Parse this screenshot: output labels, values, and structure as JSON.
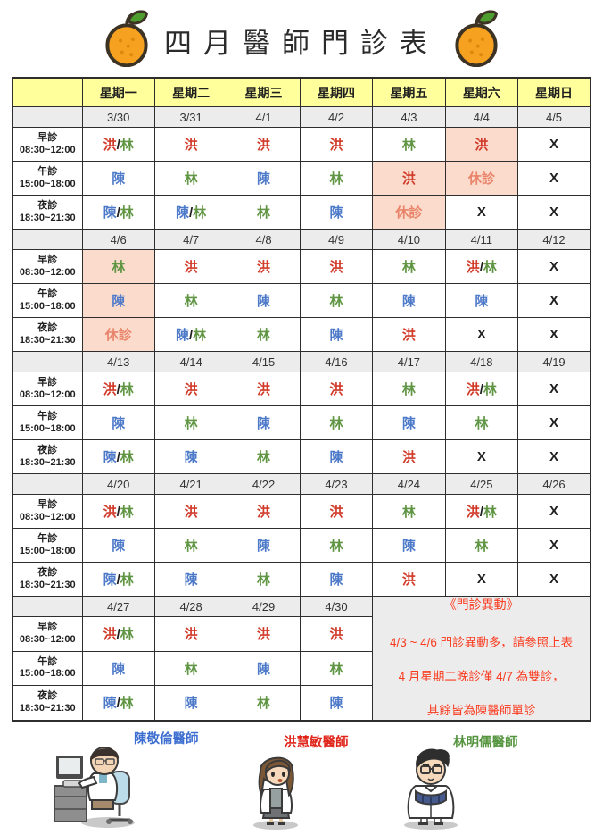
{
  "title": "四月醫師門診表",
  "weekday_headers": [
    "星期一",
    "星期二",
    "星期三",
    "星期四",
    "星期五",
    "星期六",
    "星期日"
  ],
  "time_slots": [
    {
      "name": "早診",
      "hours": "08:30~12:00"
    },
    {
      "name": "午診",
      "hours": "15:00~18:00"
    },
    {
      "name": "夜診",
      "hours": "18:30~21:30"
    }
  ],
  "legend_colors": {
    "洪": "#d13b2a",
    "林": "#5f9543",
    "陳": "#4d79c9",
    "休診": "#e9846a",
    "X": "#1f1f1f"
  },
  "colors": {
    "header_bg": "#ffff9c",
    "date_row_bg": "#ececec",
    "highlight_bg": "#fbdccc",
    "notice_text": "#fa3b1f"
  },
  "weeks": [
    {
      "dates": [
        "3/30",
        "3/31",
        "4/1",
        "4/2",
        "4/3",
        "4/4",
        "4/5"
      ],
      "rows": [
        [
          {
            "text": "洪/林",
            "highlight": false
          },
          {
            "text": "洪",
            "highlight": false
          },
          {
            "text": "洪",
            "highlight": false
          },
          {
            "text": "洪",
            "highlight": false
          },
          {
            "text": "林",
            "highlight": false
          },
          {
            "text": "洪",
            "highlight": true
          },
          {
            "text": "X",
            "highlight": false
          }
        ],
        [
          {
            "text": "陳",
            "highlight": false
          },
          {
            "text": "林",
            "highlight": false
          },
          {
            "text": "陳",
            "highlight": false
          },
          {
            "text": "林",
            "highlight": false
          },
          {
            "text": "洪",
            "highlight": true
          },
          {
            "text": "休診",
            "highlight": true
          },
          {
            "text": "X",
            "highlight": false
          }
        ],
        [
          {
            "text": "陳/林",
            "highlight": false
          },
          {
            "text": "陳/林",
            "highlight": false
          },
          {
            "text": "林",
            "highlight": false
          },
          {
            "text": "陳",
            "highlight": false
          },
          {
            "text": "休診",
            "highlight": true
          },
          {
            "text": "X",
            "highlight": false
          },
          {
            "text": "X",
            "highlight": false
          }
        ]
      ]
    },
    {
      "dates": [
        "4/6",
        "4/7",
        "4/8",
        "4/9",
        "4/10",
        "4/11",
        "4/12"
      ],
      "rows": [
        [
          {
            "text": "林",
            "highlight": true
          },
          {
            "text": "洪",
            "highlight": false
          },
          {
            "text": "洪",
            "highlight": false
          },
          {
            "text": "洪",
            "highlight": false
          },
          {
            "text": "林",
            "highlight": false
          },
          {
            "text": "洪/林",
            "highlight": false
          },
          {
            "text": "X",
            "highlight": false
          }
        ],
        [
          {
            "text": "陳",
            "highlight": true
          },
          {
            "text": "林",
            "highlight": false
          },
          {
            "text": "陳",
            "highlight": false
          },
          {
            "text": "林",
            "highlight": false
          },
          {
            "text": "陳",
            "highlight": false
          },
          {
            "text": "陳",
            "highlight": false
          },
          {
            "text": "X",
            "highlight": false
          }
        ],
        [
          {
            "text": "休診",
            "highlight": true
          },
          {
            "text": "陳/林",
            "highlight": false
          },
          {
            "text": "林",
            "highlight": false
          },
          {
            "text": "陳",
            "highlight": false
          },
          {
            "text": "洪",
            "highlight": false
          },
          {
            "text": "X",
            "highlight": false
          },
          {
            "text": "X",
            "highlight": false
          }
        ]
      ]
    },
    {
      "dates": [
        "4/13",
        "4/14",
        "4/15",
        "4/16",
        "4/17",
        "4/18",
        "4/19"
      ],
      "rows": [
        [
          {
            "text": "洪/林",
            "highlight": false
          },
          {
            "text": "洪",
            "highlight": false
          },
          {
            "text": "洪",
            "highlight": false
          },
          {
            "text": "洪",
            "highlight": false
          },
          {
            "text": "林",
            "highlight": false
          },
          {
            "text": "洪/林",
            "highlight": false
          },
          {
            "text": "X",
            "highlight": false
          }
        ],
        [
          {
            "text": "陳",
            "highlight": false
          },
          {
            "text": "林",
            "highlight": false
          },
          {
            "text": "陳",
            "highlight": false
          },
          {
            "text": "林",
            "highlight": false
          },
          {
            "text": "陳",
            "highlight": false
          },
          {
            "text": "林",
            "highlight": false
          },
          {
            "text": "X",
            "highlight": false
          }
        ],
        [
          {
            "text": "陳/林",
            "highlight": false
          },
          {
            "text": "陳",
            "highlight": false
          },
          {
            "text": "林",
            "highlight": false
          },
          {
            "text": "陳",
            "highlight": false
          },
          {
            "text": "洪",
            "highlight": false
          },
          {
            "text": "X",
            "highlight": false
          },
          {
            "text": "X",
            "highlight": false
          }
        ]
      ]
    },
    {
      "dates": [
        "4/20",
        "4/21",
        "4/22",
        "4/23",
        "4/24",
        "4/25",
        "4/26"
      ],
      "rows": [
        [
          {
            "text": "洪/林",
            "highlight": false
          },
          {
            "text": "洪",
            "highlight": false
          },
          {
            "text": "洪",
            "highlight": false
          },
          {
            "text": "洪",
            "highlight": false
          },
          {
            "text": "林",
            "highlight": false
          },
          {
            "text": "洪/林",
            "highlight": false
          },
          {
            "text": "X",
            "highlight": false
          }
        ],
        [
          {
            "text": "陳",
            "highlight": false
          },
          {
            "text": "林",
            "highlight": false
          },
          {
            "text": "陳",
            "highlight": false
          },
          {
            "text": "林",
            "highlight": false
          },
          {
            "text": "陳",
            "highlight": false
          },
          {
            "text": "林",
            "highlight": false
          },
          {
            "text": "X",
            "highlight": false
          }
        ],
        [
          {
            "text": "陳/林",
            "highlight": false
          },
          {
            "text": "陳",
            "highlight": false
          },
          {
            "text": "林",
            "highlight": false
          },
          {
            "text": "陳",
            "highlight": false
          },
          {
            "text": "洪",
            "highlight": false
          },
          {
            "text": "X",
            "highlight": false
          },
          {
            "text": "X",
            "highlight": false
          }
        ]
      ]
    },
    {
      "dates": [
        "4/27",
        "4/28",
        "4/29",
        "4/30"
      ],
      "has_notice": true,
      "rows": [
        [
          {
            "text": "洪/林",
            "highlight": false
          },
          {
            "text": "洪",
            "highlight": false
          },
          {
            "text": "洪",
            "highlight": false
          },
          {
            "text": "洪",
            "highlight": false
          }
        ],
        [
          {
            "text": "陳",
            "highlight": false
          },
          {
            "text": "林",
            "highlight": false
          },
          {
            "text": "陳",
            "highlight": false
          },
          {
            "text": "林",
            "highlight": false
          }
        ],
        [
          {
            "text": "陳/林",
            "highlight": false
          },
          {
            "text": "陳",
            "highlight": false
          },
          {
            "text": "林",
            "highlight": false
          },
          {
            "text": "陳",
            "highlight": false
          }
        ]
      ]
    }
  ],
  "notice": {
    "heading": "《門診異動》",
    "lines": [
      "4/3 ~ 4/6 門診異動多，請參照上表",
      "4 月星期二晚診僅 4/7 為雙診，",
      "其餘皆為陳醫師單診"
    ]
  },
  "doctors": [
    {
      "name": "陳敬倫醫師",
      "color": "#3e6fd0"
    },
    {
      "name": "洪慧敏醫師",
      "color": "#e0251b"
    },
    {
      "name": "林明儒醫師",
      "color": "#55953f"
    }
  ]
}
